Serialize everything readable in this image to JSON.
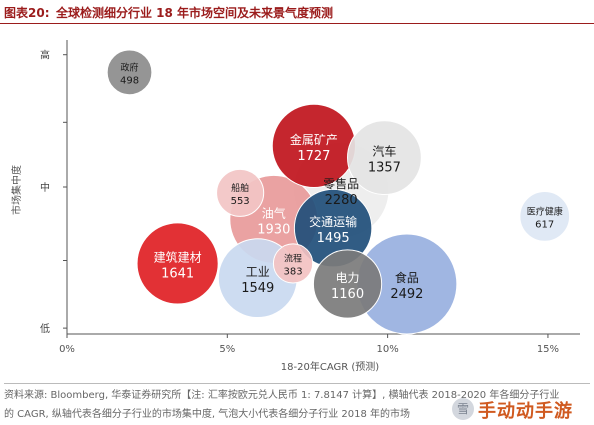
{
  "figure": {
    "label": "图表20:",
    "title": "全球检测细分行业 18 年市场空间及未来景气度预测"
  },
  "source_note": {
    "line1": "资料来源: Bloomberg, 华泰证券研究所【注: 汇率按欧元兑人民币 1: 7.8147 计算】, 横轴代表 2018-2020 年各细分子行业",
    "line2": "的 CAGR, 纵轴代表各细分子行业的市场集中度, 气泡大小代表各细分子行业 2018 年的市场"
  },
  "watermark": {
    "logo_text": "雪",
    "text": "手动动手游"
  },
  "chart_data": {
    "type": "scatter",
    "xlabel": "18-20年CAGR (预测)",
    "ylabel": "市场集中度",
    "xlim": [
      0,
      16
    ],
    "x_ticks": [
      0,
      5,
      10,
      15
    ],
    "x_tick_labels": [
      "0%",
      "5%",
      "10%",
      "15%"
    ],
    "y_ticks": [
      {
        "label": "高",
        "value": 0.95
      },
      {
        "label": "中",
        "value": 0.5
      },
      {
        "label": "低",
        "value": 0.02
      }
    ],
    "ylim": [
      0,
      1
    ],
    "grid": false,
    "size_by": "value",
    "points": [
      {
        "name": "政府",
        "x": 1.95,
        "y": 0.89,
        "value": 498,
        "color": "#8c8c8c",
        "text_color": "#1a1a1a"
      },
      {
        "name": "金属矿产",
        "x": 7.7,
        "y": 0.64,
        "value": 1727,
        "color": "#c0141c",
        "text_color": "#ffffff"
      },
      {
        "name": "汽车",
        "x": 9.9,
        "y": 0.6,
        "value": 1357,
        "color": "#e4e4e4",
        "text_color": "#1a1a1a"
      },
      {
        "name": "零售品",
        "x": 8.55,
        "y": 0.49,
        "value": 2280,
        "color": "#ededed",
        "text_color": "#1a1a1a"
      },
      {
        "name": "船舶",
        "x": 5.4,
        "y": 0.48,
        "value": 553,
        "color": "#f2c4c4",
        "text_color": "#1a1a1a"
      },
      {
        "name": "油气",
        "x": 6.45,
        "y": 0.39,
        "value": 1930,
        "color": "#e89a9a",
        "text_color": "#ffffff"
      },
      {
        "name": "交通运输",
        "x": 8.3,
        "y": 0.36,
        "value": 1495,
        "color": "#1f4e79",
        "text_color": "#ffffff"
      },
      {
        "name": "医疗健康",
        "x": 14.9,
        "y": 0.4,
        "value": 617,
        "color": "#dde7f4",
        "text_color": "#1a1a1a"
      },
      {
        "name": "建筑建材",
        "x": 3.45,
        "y": 0.24,
        "value": 1641,
        "color": "#e01f24",
        "text_color": "#ffffff"
      },
      {
        "name": "工业",
        "x": 5.95,
        "y": 0.19,
        "value": 1549,
        "color": "#c9d9f0",
        "text_color": "#1a1a1a"
      },
      {
        "name": "流程",
        "x": 7.05,
        "y": 0.24,
        "value": 383,
        "color": "#f3c2c2",
        "text_color": "#1a1a1a"
      },
      {
        "name": "电力",
        "x": 8.75,
        "y": 0.17,
        "value": 1160,
        "color": "#7b7b7b",
        "text_color": "#ffffff"
      },
      {
        "name": "食品",
        "x": 10.6,
        "y": 0.17,
        "value": 2492,
        "color": "#98b0df",
        "text_color": "#1a1a1a"
      }
    ]
  }
}
